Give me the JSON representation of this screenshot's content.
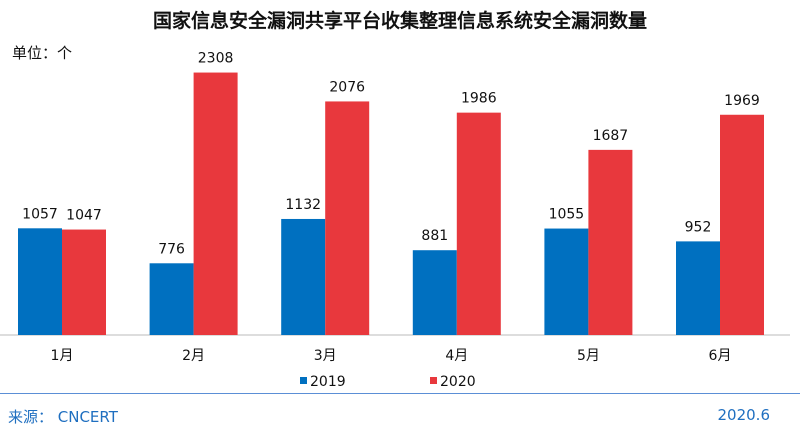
{
  "chart_data": {
    "type": "bar",
    "title": "国家信息安全漏洞共享平台收集整理信息系统安全漏洞数量",
    "unit_label": "单位：个",
    "categories": [
      "1月",
      "2月",
      "3月",
      "4月",
      "5月",
      "6月"
    ],
    "series": [
      {
        "name": "2019",
        "color": "#0070C0",
        "values": [
          1057,
          776,
          1132,
          881,
          1055,
          952
        ]
      },
      {
        "name": "2020",
        "color": "#E8383D",
        "values": [
          1047,
          2308,
          2076,
          1986,
          1687,
          1969
        ]
      }
    ],
    "legend_position": "bottom",
    "grid": false
  },
  "footer": {
    "source": "来源： CNCERT",
    "date": "2020.6"
  }
}
